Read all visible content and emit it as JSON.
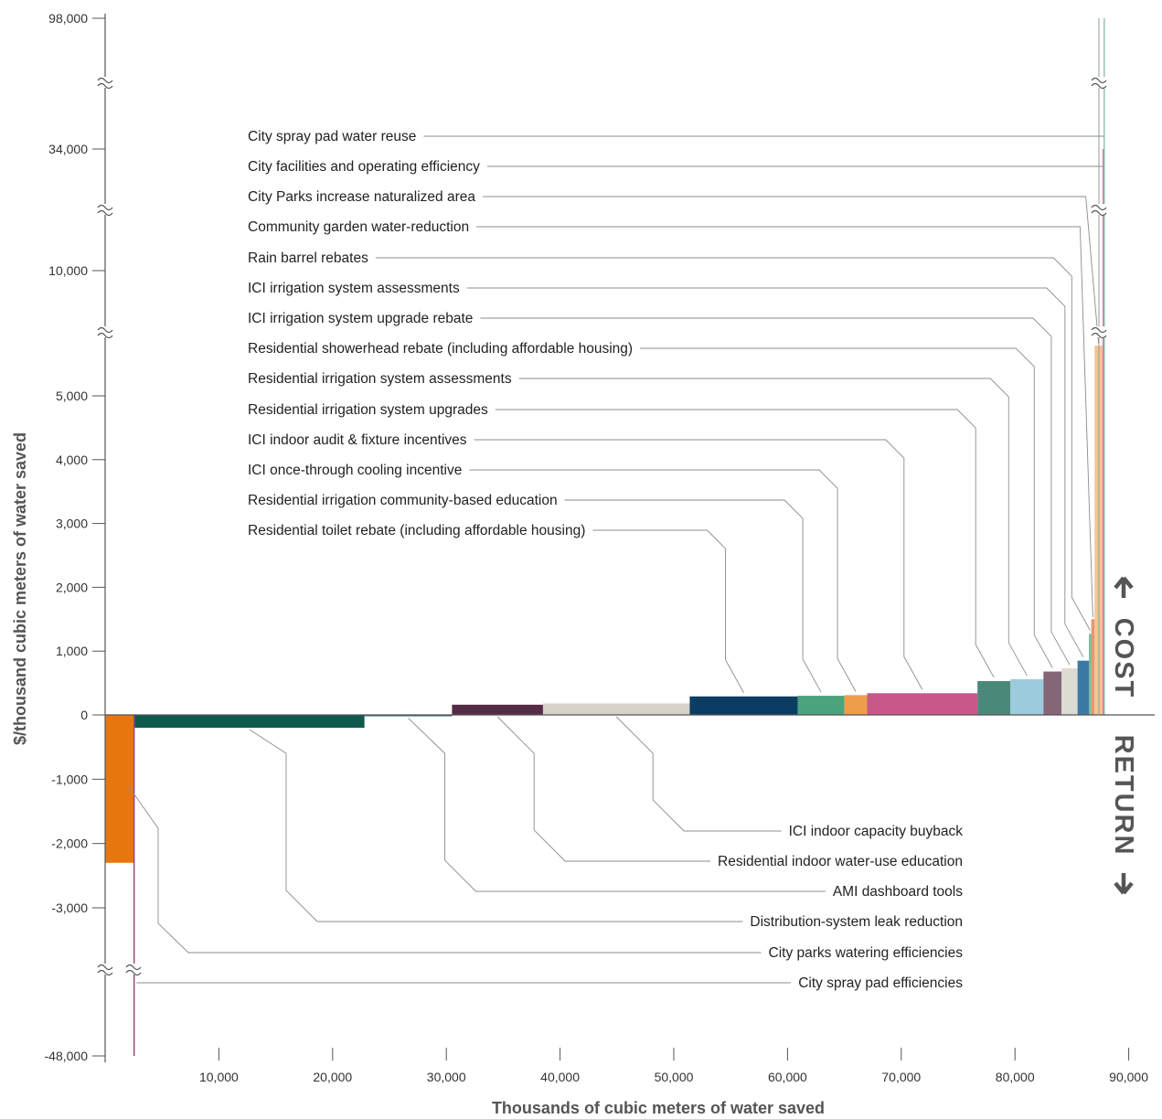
{
  "chart_data": {
    "type": "bar",
    "subtype": "marginal cost curve (variable-width bars)",
    "xlabel": "Thousands of cubic meters of water saved",
    "ylabel": "$/thousand cubic meters of water saved",
    "side_labels": {
      "cost": "COST",
      "return": "RETURN"
    },
    "x_ticks": [
      10000,
      20000,
      30000,
      40000,
      50000,
      60000,
      70000,
      80000,
      90000
    ],
    "x_tick_labels": [
      "10,000",
      "20,000",
      "30,000",
      "40,000",
      "50,000",
      "60,000",
      "70,000",
      "80,000",
      "90,000"
    ],
    "xlim": [
      0,
      90000
    ],
    "y_ticks": [
      98000,
      34000,
      10000,
      5000,
      4000,
      3000,
      2000,
      1000,
      0,
      -1000,
      -2000,
      -3000,
      -48000
    ],
    "y_tick_labels": [
      "98,000",
      "34,000",
      "10,000",
      "5,000",
      "4,000",
      "3,000",
      "2,000",
      "1,000",
      "0",
      "-1,000",
      "-2,000",
      "-3,000",
      "-48,000"
    ],
    "y_axis_breaks": true,
    "series": [
      {
        "name": "City parks watering efficiencies",
        "x_start": 0,
        "x_end": 2500,
        "value": -2300,
        "color": "#e8760f"
      },
      {
        "name": "City spray pad efficiencies",
        "x_start": 2500,
        "x_end": 2600,
        "value": -48000,
        "color": "#8b2a7e"
      },
      {
        "name": "Distribution-system leak reduction",
        "x_start": 2600,
        "x_end": 22800,
        "value": -200,
        "color": "#0d5a4b"
      },
      {
        "name": "AMI dashboard tools",
        "x_start": 22800,
        "x_end": 30500,
        "value": -20,
        "color": "#2f6d7e"
      },
      {
        "name": "Residential indoor water-use education",
        "x_start": 30500,
        "x_end": 38500,
        "value": 160,
        "color": "#552c45"
      },
      {
        "name": "ICI indoor capacity buyback",
        "x_start": 38500,
        "x_end": 51400,
        "value": 180,
        "color": "#d6d2c8"
      },
      {
        "name": "Residential toilet rebate (including affordable housing)",
        "x_start": 51400,
        "x_end": 60900,
        "value": 290,
        "color": "#0b3d62"
      },
      {
        "name": "Residential irrigation community-based education",
        "x_start": 60900,
        "x_end": 65000,
        "value": 300,
        "color": "#4aa37c"
      },
      {
        "name": "ICI once-through cooling incentive",
        "x_start": 65000,
        "x_end": 67000,
        "value": 310,
        "color": "#ee9d4b"
      },
      {
        "name": "ICI indoor audit & fixture incentives",
        "x_start": 67000,
        "x_end": 76700,
        "value": 340,
        "color": "#c8578a"
      },
      {
        "name": "Residential  irrigation system upgrades",
        "x_start": 76700,
        "x_end": 79600,
        "value": 530,
        "color": "#4a897a"
      },
      {
        "name": "Residential irrigation system assessments",
        "x_start": 79600,
        "x_end": 82500,
        "value": 560,
        "color": "#9ccbdc"
      },
      {
        "name": "Residential showerhead rebate (including affordable housing)",
        "x_start": 82500,
        "x_end": 84100,
        "value": 680,
        "color": "#856677"
      },
      {
        "name": "ICI irrigation system upgrade rebate",
        "x_start": 84100,
        "x_end": 85500,
        "value": 730,
        "color": "#dedbd3"
      },
      {
        "name": "ICI irrigation system assessments",
        "x_start": 85500,
        "x_end": 86500,
        "value": 850,
        "color": "#3b7aa5"
      },
      {
        "name": "Rain barrel rebates",
        "x_start": 86500,
        "x_end": 86700,
        "value": 1270,
        "color": "#6ec09a"
      },
      {
        "name": "Community garden water-reduction",
        "x_start": 86700,
        "x_end": 87000,
        "value": 1500,
        "color": "#e49a73"
      },
      {
        "name": "City Parks increase naturalized area",
        "x_start": 87000,
        "x_end": 87700,
        "value": 7000,
        "color": "#f5c394"
      },
      {
        "name": "City facilities and operating efficiency",
        "x_start": 87700,
        "x_end": 87800,
        "value": 34000,
        "color": "#d6739e"
      },
      {
        "name": "City spray pad water reuse",
        "x_start": 87800,
        "x_end": 87900,
        "value": 98000,
        "color": "#7fb5a7"
      }
    ]
  }
}
